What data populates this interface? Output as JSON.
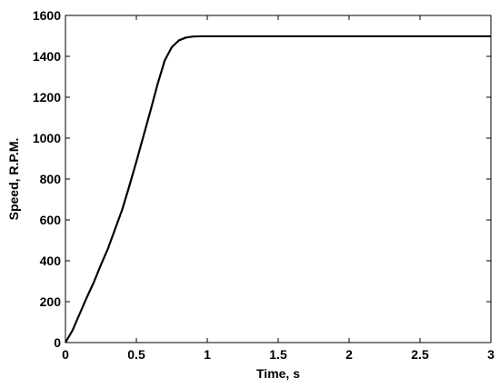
{
  "chart_data": {
    "type": "line",
    "title": "",
    "xlabel": "Time, s",
    "ylabel": "Speed, R.P.M.",
    "xlim": [
      0,
      3
    ],
    "ylim": [
      0,
      1600
    ],
    "x_ticks": [
      0,
      0.5,
      1,
      1.5,
      2,
      2.5,
      3
    ],
    "x_tick_labels": [
      "0",
      "0.5",
      "1",
      "1.5",
      "2",
      "2.5",
      "3"
    ],
    "y_ticks": [
      0,
      200,
      400,
      600,
      800,
      1000,
      1200,
      1400,
      1600
    ],
    "y_tick_labels": [
      "0",
      "200",
      "400",
      "600",
      "800",
      "1000",
      "1200",
      "1400",
      "1600"
    ],
    "grid": false,
    "legend": "none",
    "line_color": "#000000",
    "series": [
      {
        "x": [
          0,
          0.05,
          0.1,
          0.15,
          0.2,
          0.25,
          0.3,
          0.35,
          0.4,
          0.45,
          0.5,
          0.55,
          0.6,
          0.65,
          0.7,
          0.75,
          0.8,
          0.85,
          0.9,
          0.95,
          1.0,
          1.25,
          1.5,
          1.75,
          2.0,
          2.25,
          2.5,
          2.75,
          3.0
        ],
        "values": [
          0,
          60,
          140,
          220,
          295,
          380,
          460,
          555,
          650,
          765,
          885,
          1010,
          1135,
          1265,
          1380,
          1445,
          1478,
          1492,
          1497,
          1498,
          1498,
          1498,
          1498,
          1498,
          1498,
          1498,
          1498,
          1498,
          1498
        ]
      }
    ]
  }
}
